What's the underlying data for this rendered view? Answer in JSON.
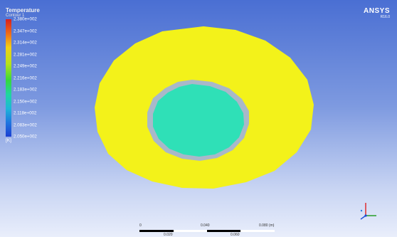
{
  "legend": {
    "title": "Temperature",
    "subtitle": "Contour 1",
    "values": [
      "2.380e+002",
      "2.347e+002",
      "2.314e+002",
      "2.281e+002",
      "2.249e+002",
      "2.216e+002",
      "2.183e+002",
      "2.150e+002",
      "2.118e+002",
      "2.083e+002",
      "2.050e+002"
    ],
    "unit": "[K]"
  },
  "logo": {
    "main": "ANSYS",
    "version": "R16.0"
  },
  "scale_bar": {
    "labels": [
      "0",
      "0.040",
      "0.080 (m)"
    ],
    "sublabels": [
      "0.020",
      "0.060"
    ]
  },
  "watermark": "",
  "colors": {
    "outer_ring": "#f3f21a",
    "gap_ring": "#a9b8c9",
    "inner_disk": "#2fe0b7",
    "background_top": "#4a6fd3",
    "background_bottom": "#e9eefb"
  },
  "icons": {
    "axis_triad": "xyz-axis-triad-icon"
  }
}
